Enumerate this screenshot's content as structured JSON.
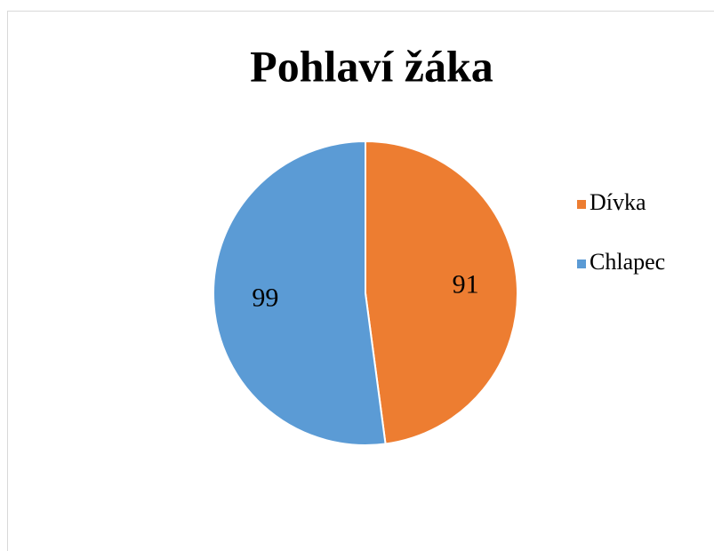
{
  "chart_data": {
    "type": "pie",
    "title": "Pohlaví žáka",
    "categories": [
      "Dívka",
      "Chlapec"
    ],
    "values": [
      91,
      99
    ],
    "colors": [
      "#ED7D31",
      "#5B9BD5"
    ],
    "legend": "right"
  }
}
